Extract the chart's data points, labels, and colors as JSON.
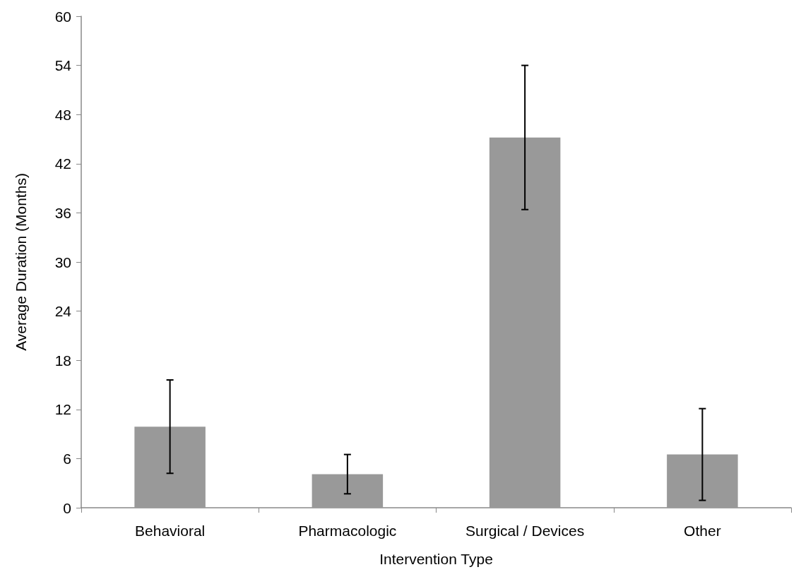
{
  "chart_data": {
    "type": "bar",
    "xlabel": "Intervention Type",
    "ylabel": "Average Duration (Months)",
    "categories": [
      "Behavioral",
      "Pharmacologic",
      "Surgical / Devices",
      "Other"
    ],
    "values": [
      9.9,
      4.1,
      45.2,
      6.5
    ],
    "errors": [
      5.7,
      2.4,
      8.8,
      5.6
    ],
    "color": "#999999",
    "ylim": [
      0,
      60
    ],
    "yticks": [
      0,
      6,
      12,
      18,
      24,
      30,
      36,
      42,
      48,
      54,
      60
    ],
    "grid": false
  }
}
